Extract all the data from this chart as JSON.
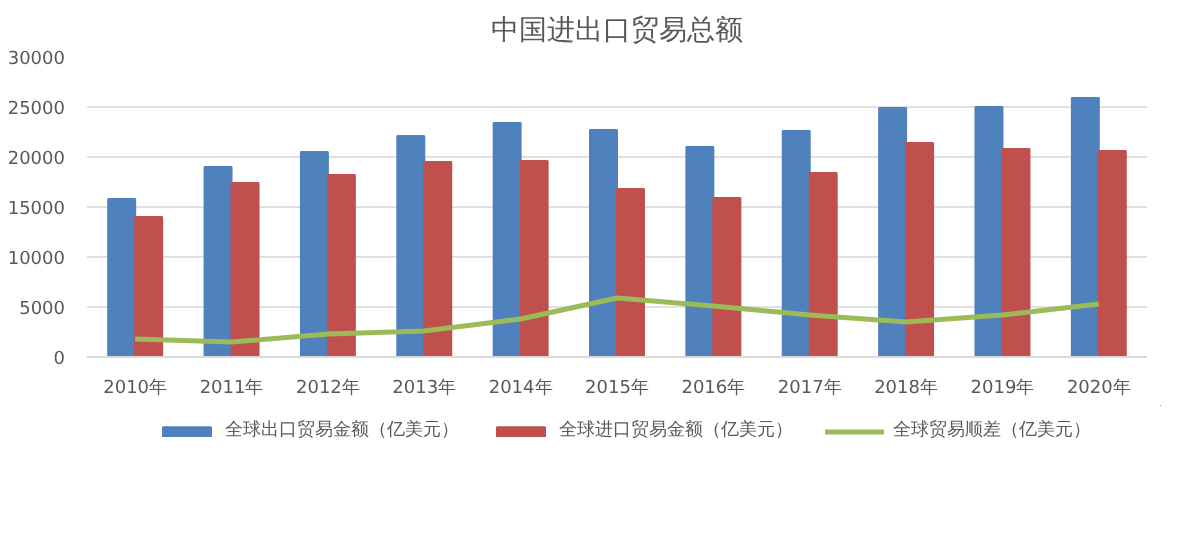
{
  "chart_data": {
    "type": "bar",
    "title": "中国进出口贸易总额",
    "categories": [
      "2010年",
      "2011年",
      "2012年",
      "2013年",
      "2014年",
      "2015年",
      "2016年",
      "2017年",
      "2018年",
      "2019年",
      "2020年"
    ],
    "series": [
      {
        "name": "全球出口贸易金额（亿美元）",
        "color": "#4f81bd",
        "values": [
          15800,
          19000,
          20500,
          22100,
          23400,
          22700,
          21000,
          22600,
          24900,
          25000,
          25900
        ]
      },
      {
        "name": "全球进口贸易金额（亿美元）",
        "color": "#c0504d",
        "values": [
          14000,
          17400,
          18200,
          19500,
          19600,
          16800,
          15900,
          18400,
          21400,
          20800,
          20600
        ]
      },
      {
        "name": "全球贸易顺差（亿美元）",
        "color": "#9bbb59",
        "type": "line",
        "values": [
          1800,
          1500,
          2300,
          2600,
          3800,
          5900,
          5100,
          4200,
          3500,
          4200,
          5300
        ]
      }
    ],
    "ylim": [
      0,
      30000
    ],
    "yticks": [
      0,
      5000,
      10000,
      15000,
      20000,
      25000,
      30000
    ],
    "grid": "y",
    "legend": "bottom"
  }
}
